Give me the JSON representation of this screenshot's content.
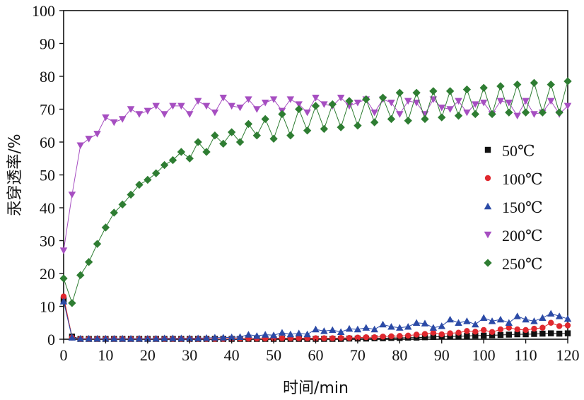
{
  "chart_data": {
    "type": "line",
    "xlabel": "时间/min",
    "ylabel": "汞穿透率/%",
    "xlim": [
      0,
      120
    ],
    "ylim": [
      0,
      100
    ],
    "xticks": [
      0,
      10,
      20,
      30,
      40,
      50,
      60,
      70,
      80,
      90,
      100,
      110,
      120
    ],
    "yticks": [
      0,
      10,
      20,
      30,
      40,
      50,
      60,
      70,
      80,
      90,
      100
    ],
    "legend_position": "right",
    "series": [
      {
        "name": "50℃",
        "color": "#111111",
        "marker": "square",
        "x": [
          0,
          2,
          4,
          6,
          8,
          10,
          12,
          14,
          16,
          18,
          20,
          22,
          24,
          26,
          28,
          30,
          32,
          34,
          36,
          38,
          40,
          42,
          44,
          46,
          48,
          50,
          52,
          54,
          56,
          58,
          60,
          62,
          64,
          66,
          68,
          70,
          72,
          74,
          76,
          78,
          80,
          82,
          84,
          86,
          88,
          90,
          92,
          94,
          96,
          98,
          100,
          102,
          104,
          106,
          108,
          110,
          112,
          114,
          116,
          118,
          120
        ],
        "y": [
          12,
          0.8,
          0.1,
          0.1,
          0.1,
          0.1,
          0.1,
          0.1,
          0.1,
          0.1,
          0.1,
          0.1,
          0.1,
          0.1,
          0.1,
          0.1,
          0.1,
          0.1,
          0.1,
          0.1,
          0.1,
          0.1,
          0.1,
          0.1,
          0.1,
          0.1,
          0.1,
          0.1,
          0.1,
          0.1,
          0.1,
          0.1,
          0.1,
          0.1,
          0.2,
          0.2,
          0.2,
          0.3,
          0.3,
          0.4,
          0.4,
          0.5,
          0.5,
          0.6,
          0.7,
          0.8,
          0.8,
          0.9,
          1.0,
          1.1,
          1.1,
          1.2,
          1.3,
          1.4,
          1.5,
          1.5,
          1.6,
          1.7,
          1.8,
          1.7,
          1.8
        ]
      },
      {
        "name": "100℃",
        "color": "#e0282e",
        "marker": "circle",
        "x": [
          0,
          2,
          4,
          6,
          8,
          10,
          12,
          14,
          16,
          18,
          20,
          22,
          24,
          26,
          28,
          30,
          32,
          34,
          36,
          38,
          40,
          42,
          44,
          46,
          48,
          50,
          52,
          54,
          56,
          58,
          60,
          62,
          64,
          66,
          68,
          70,
          72,
          74,
          76,
          78,
          80,
          82,
          84,
          86,
          88,
          90,
          92,
          94,
          96,
          98,
          100,
          102,
          104,
          106,
          108,
          110,
          112,
          114,
          116,
          118,
          120
        ],
        "y": [
          13,
          0.5,
          0.1,
          0.1,
          0.1,
          0.1,
          0.1,
          0.1,
          0.1,
          0.1,
          0.1,
          0.1,
          0.1,
          0.1,
          0.1,
          0.1,
          0.1,
          0.1,
          0.1,
          0.1,
          0.2,
          0.2,
          0.2,
          0.2,
          0.2,
          0.3,
          0.3,
          0.3,
          0.3,
          0.3,
          0.3,
          0.3,
          0.3,
          0.4,
          0.4,
          0.5,
          0.6,
          0.6,
          0.8,
          0.9,
          1.0,
          1.1,
          1.4,
          1.6,
          2.0,
          1.5,
          1.8,
          2.0,
          2.5,
          2.3,
          2.8,
          2.2,
          3.0,
          3.5,
          3.0,
          2.8,
          3.2,
          3.5,
          5.0,
          4.0,
          4.2
        ]
      },
      {
        "name": "150℃",
        "color": "#2b4aa6",
        "marker": "triangle-up",
        "x": [
          0,
          2,
          4,
          6,
          8,
          10,
          12,
          14,
          16,
          18,
          20,
          22,
          24,
          26,
          28,
          30,
          32,
          34,
          36,
          38,
          40,
          42,
          44,
          46,
          48,
          50,
          52,
          54,
          56,
          58,
          60,
          62,
          64,
          66,
          68,
          70,
          72,
          74,
          76,
          78,
          80,
          82,
          84,
          86,
          88,
          90,
          92,
          94,
          96,
          98,
          100,
          102,
          104,
          106,
          108,
          110,
          112,
          114,
          116,
          118,
          120
        ],
        "y": [
          11.5,
          0.5,
          0.2,
          0.2,
          0.2,
          0.2,
          0.2,
          0.2,
          0.2,
          0.2,
          0.2,
          0.2,
          0.3,
          0.3,
          0.3,
          0.3,
          0.3,
          0.4,
          0.5,
          0.5,
          0.6,
          0.7,
          1.4,
          1.0,
          1.4,
          1.2,
          2.0,
          1.5,
          1.8,
          1.5,
          3.0,
          2.5,
          2.8,
          2.2,
          3.2,
          3.0,
          3.5,
          3.0,
          4.5,
          3.8,
          3.5,
          3.8,
          5.0,
          4.8,
          3.5,
          4.0,
          6.0,
          5.0,
          5.5,
          4.5,
          6.5,
          5.5,
          6.0,
          5.0,
          7.0,
          6.0,
          5.5,
          6.5,
          7.8,
          7.0,
          6.2
        ]
      },
      {
        "name": "200℃",
        "color": "#a64ec1",
        "marker": "triangle-down",
        "x": [
          0,
          2,
          4,
          6,
          8,
          10,
          12,
          14,
          16,
          18,
          20,
          22,
          24,
          26,
          28,
          30,
          32,
          34,
          36,
          38,
          40,
          42,
          44,
          46,
          48,
          50,
          52,
          54,
          56,
          58,
          60,
          62,
          64,
          66,
          68,
          70,
          72,
          74,
          76,
          78,
          80,
          82,
          84,
          86,
          88,
          90,
          92,
          94,
          96,
          98,
          100,
          102,
          104,
          106,
          108,
          110,
          112,
          114,
          116,
          118,
          120
        ],
        "y": [
          27,
          44,
          59,
          61,
          62.5,
          67.5,
          66,
          67,
          70,
          68.5,
          69.5,
          71,
          68.5,
          71,
          71,
          68.5,
          72.5,
          71,
          69,
          73.5,
          71,
          70.5,
          73,
          70,
          72,
          73,
          69.5,
          73,
          71.5,
          69,
          73.5,
          71.5,
          71,
          73.5,
          71,
          72,
          73,
          69,
          73,
          72,
          68.5,
          72.5,
          72,
          68.5,
          73,
          70.5,
          70,
          72.5,
          69,
          71.5,
          72,
          68.5,
          72.5,
          72,
          68,
          72.5,
          68.5,
          69,
          72.5,
          68.5,
          71
        ]
      },
      {
        "name": "250℃",
        "color": "#2e7d32",
        "marker": "diamond",
        "x": [
          0,
          2,
          4,
          6,
          8,
          10,
          12,
          14,
          16,
          18,
          20,
          22,
          24,
          26,
          28,
          30,
          32,
          34,
          36,
          38,
          40,
          42,
          44,
          46,
          48,
          50,
          52,
          54,
          56,
          58,
          60,
          62,
          64,
          66,
          68,
          70,
          72,
          74,
          76,
          78,
          80,
          82,
          84,
          86,
          88,
          90,
          92,
          94,
          96,
          98,
          100,
          102,
          104,
          106,
          108,
          110,
          112,
          114,
          116,
          118,
          120
        ],
        "y": [
          18.5,
          11,
          19.5,
          23.5,
          29,
          34,
          38.5,
          41,
          44,
          47,
          48.5,
          50.5,
          53,
          54.5,
          57,
          55,
          60,
          57,
          62,
          59.5,
          63,
          60,
          65.5,
          62,
          67,
          61,
          68.5,
          62,
          70,
          63.5,
          71,
          64,
          71.5,
          64.5,
          72.5,
          65,
          73,
          66,
          73.5,
          67,
          75,
          66.5,
          75,
          67,
          75.5,
          67.5,
          75.5,
          68,
          76,
          68.5,
          76.5,
          68.5,
          77,
          69,
          77.5,
          69,
          78,
          69,
          77.5,
          69,
          78.5
        ]
      }
    ]
  }
}
